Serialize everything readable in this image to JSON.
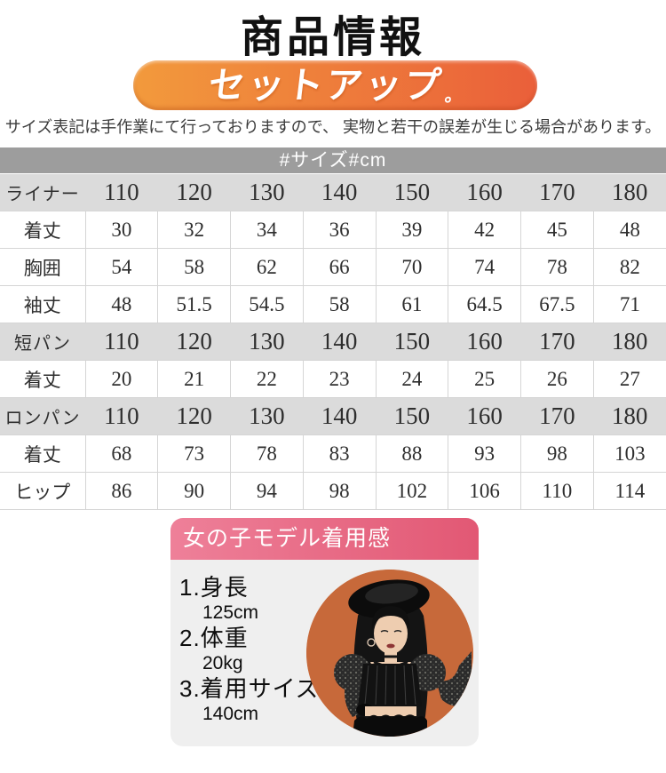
{
  "page": {
    "title": "商品情報",
    "banner": {
      "label": "セットアップ",
      "period": "。",
      "color_left": "#F29A3C",
      "color_right": "#EA5F3A"
    },
    "note": "サイズ表記は手作業にて行っておりますので、 実物と若干の誤差が生じる場合があります。"
  },
  "size_table": {
    "header": "#サイズ#cm",
    "header_bg": "#9D9D9D",
    "band_bg": "#DBDBDB",
    "rows": [
      {
        "label": "ライナー",
        "band": true,
        "values": [
          "110",
          "120",
          "130",
          "140",
          "150",
          "160",
          "170",
          "180"
        ]
      },
      {
        "label": "着丈",
        "band": false,
        "values": [
          "30",
          "32",
          "34",
          "36",
          "39",
          "42",
          "45",
          "48"
        ]
      },
      {
        "label": "胸囲",
        "band": false,
        "values": [
          "54",
          "58",
          "62",
          "66",
          "70",
          "74",
          "78",
          "82"
        ]
      },
      {
        "label": "袖丈",
        "band": false,
        "values": [
          "48",
          "51.5",
          "54.5",
          "58",
          "61",
          "64.5",
          "67.5",
          "71"
        ]
      },
      {
        "label": "短パン",
        "band": true,
        "values": [
          "110",
          "120",
          "130",
          "140",
          "150",
          "160",
          "170",
          "180"
        ]
      },
      {
        "label": "着丈",
        "band": false,
        "values": [
          "20",
          "21",
          "22",
          "23",
          "24",
          "25",
          "26",
          "27"
        ]
      },
      {
        "label": "ロンパン",
        "band": true,
        "values": [
          "110",
          "120",
          "130",
          "140",
          "150",
          "160",
          "170",
          "180"
        ]
      },
      {
        "label": "着丈",
        "band": false,
        "values": [
          "68",
          "73",
          "78",
          "83",
          "88",
          "93",
          "98",
          "103"
        ]
      },
      {
        "label": "ヒップ",
        "band": false,
        "values": [
          "86",
          "90",
          "94",
          "98",
          "102",
          "106",
          "110",
          "114"
        ]
      }
    ]
  },
  "model_panel": {
    "title": "女の子モデル着用感",
    "header_color_left": "#EE8099",
    "header_color_right": "#E25874",
    "items": [
      {
        "label": "1.身長",
        "value": "125cm"
      },
      {
        "label": "2.体重",
        "value": "20kg"
      },
      {
        "label": "3.着用サイズ",
        "value": "140cm"
      }
    ],
    "photo": {
      "icon": "girl-model-photo",
      "bg_color": "#C7693A"
    }
  }
}
